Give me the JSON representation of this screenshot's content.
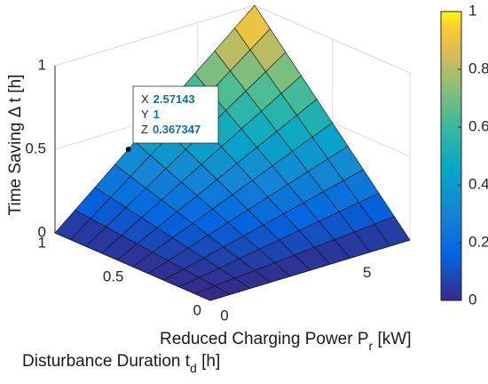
{
  "chart_data": {
    "type": "surface",
    "xlabel": [
      {
        "text": "Reduced Charging Power P"
      },
      {
        "text": "r",
        "sub": true
      },
      {
        "text": " [kW]"
      }
    ],
    "ylabel": [
      {
        "text": "Disturbance Duration t"
      },
      {
        "text": "d",
        "sub": true
      },
      {
        "text": " [h]"
      }
    ],
    "zlabel": [
      {
        "text": "Time Saving Δ t [h]"
      }
    ],
    "xlim": [
      0,
      7
    ],
    "ylim": [
      0,
      1
    ],
    "zlim": [
      0,
      1
    ],
    "xticks": [
      0,
      5
    ],
    "yticks": [
      0,
      0.5,
      1
    ],
    "zticks": [
      0,
      0.5,
      1
    ],
    "grid": true,
    "surface": {
      "x": [
        0,
        0.7,
        1.4,
        2.1,
        2.8,
        3.5,
        4.2,
        4.9,
        5.6,
        6.3,
        7
      ],
      "y": [
        0,
        0.1,
        0.2,
        0.3,
        0.4,
        0.5,
        0.6,
        0.7,
        0.8,
        0.9,
        1
      ],
      "z": [
        [
          0,
          0,
          0,
          0,
          0,
          0,
          0,
          0,
          0,
          0,
          0
        ],
        [
          0,
          0.01,
          0.02,
          0.03,
          0.04,
          0.05,
          0.06,
          0.07,
          0.08,
          0.09,
          0.1
        ],
        [
          0,
          0.02,
          0.04,
          0.06,
          0.08,
          0.1,
          0.12,
          0.14,
          0.16,
          0.18,
          0.2
        ],
        [
          0,
          0.03,
          0.06,
          0.09,
          0.12,
          0.15,
          0.18,
          0.21,
          0.24,
          0.27,
          0.3
        ],
        [
          0,
          0.04,
          0.08,
          0.12,
          0.16,
          0.2,
          0.24,
          0.28,
          0.32,
          0.36,
          0.4
        ],
        [
          0,
          0.05,
          0.1,
          0.15,
          0.2,
          0.25,
          0.3,
          0.35,
          0.4,
          0.45,
          0.5
        ],
        [
          0,
          0.06,
          0.12,
          0.18,
          0.24,
          0.3,
          0.36,
          0.42,
          0.48,
          0.54,
          0.6
        ],
        [
          0,
          0.07,
          0.14,
          0.21,
          0.28,
          0.35,
          0.42,
          0.49,
          0.56,
          0.63,
          0.7
        ],
        [
          0,
          0.08,
          0.16,
          0.24,
          0.32,
          0.4,
          0.48,
          0.56,
          0.64,
          0.72,
          0.8
        ],
        [
          0,
          0.09,
          0.18,
          0.27,
          0.36,
          0.45,
          0.54,
          0.63,
          0.72,
          0.81,
          0.9
        ],
        [
          0,
          0.1,
          0.2,
          0.3,
          0.4,
          0.5,
          0.6,
          0.7,
          0.8,
          0.9,
          1
        ]
      ]
    },
    "colormap": [
      [
        0,
        "#352a87"
      ],
      [
        0.15,
        "#0363e1"
      ],
      [
        0.3,
        "#1485d4"
      ],
      [
        0.45,
        "#06a7c6"
      ],
      [
        0.6,
        "#38b99e"
      ],
      [
        0.75,
        "#92bf73"
      ],
      [
        0.85,
        "#d9ba56"
      ],
      [
        0.95,
        "#fcce2e"
      ],
      [
        1,
        "#f9fb0e"
      ]
    ],
    "clim": [
      0,
      1
    ],
    "colorbar_ticks": [
      0,
      0.2,
      0.4,
      0.6,
      0.8,
      1
    ],
    "datatip": {
      "labels": [
        "X",
        "Y",
        "Z"
      ],
      "values": [
        2.57143,
        1,
        0.367347
      ]
    }
  }
}
